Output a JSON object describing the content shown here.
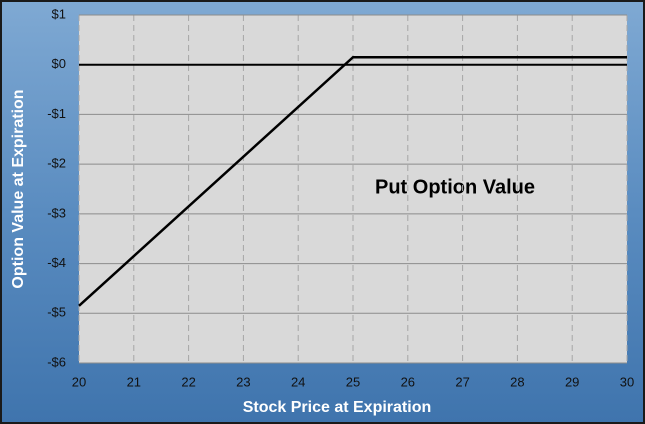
{
  "chart_data": {
    "type": "line",
    "x": [
      20,
      25,
      30
    ],
    "series": [
      {
        "name": "Put Option Value",
        "color": "#000000",
        "values": [
          -4.85,
          0.15,
          0.15
        ]
      }
    ],
    "annotation": "Put Option Value",
    "xlabel": "Stock Price at Expiration",
    "ylabel": "Option Value at Expiration",
    "xlim": [
      20,
      30
    ],
    "xticks": [
      20,
      21,
      22,
      23,
      24,
      25,
      26,
      27,
      28,
      29,
      30
    ],
    "ylim": [
      -6,
      1
    ],
    "yticks": [
      {
        "value": -6,
        "label": "-$6"
      },
      {
        "value": -5,
        "label": "-$5"
      },
      {
        "value": -4,
        "label": "-$4"
      },
      {
        "value": -3,
        "label": "-$3"
      },
      {
        "value": -2,
        "label": "-$2"
      },
      {
        "value": -1,
        "label": "-$1"
      },
      {
        "value": 0,
        "label": "$0"
      },
      {
        "value": 1,
        "label": "$1"
      }
    ],
    "grid": true
  }
}
